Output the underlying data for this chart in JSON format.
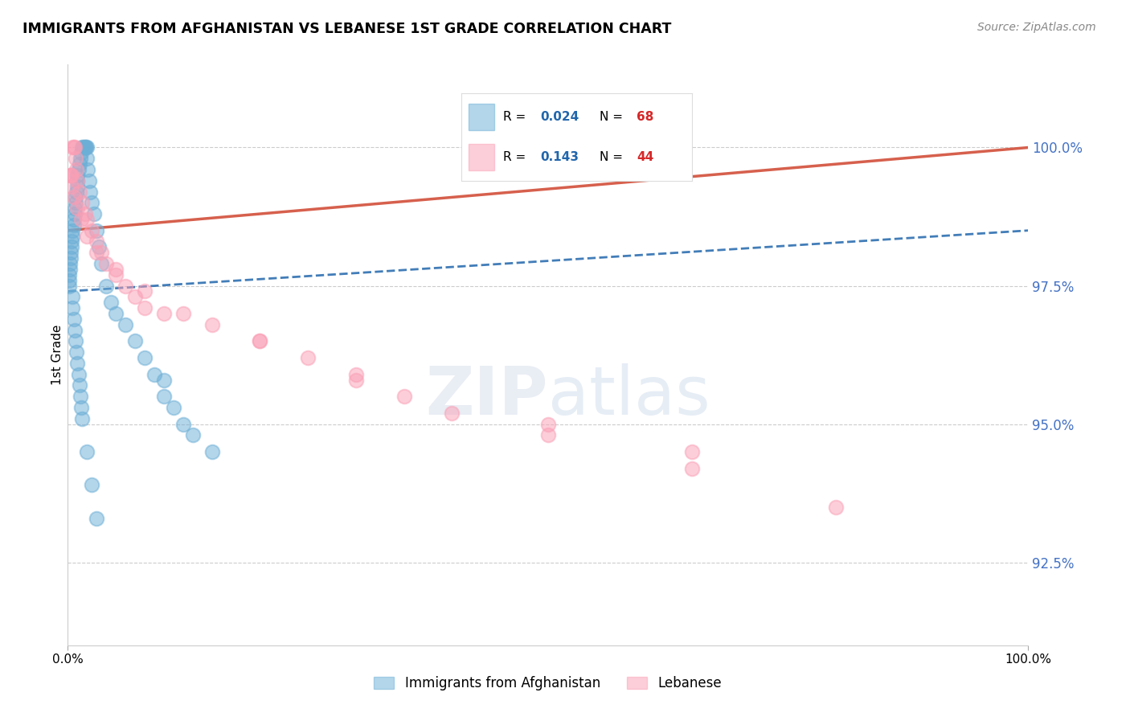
{
  "title": "IMMIGRANTS FROM AFGHANISTAN VS LEBANESE 1ST GRADE CORRELATION CHART",
  "source": "Source: ZipAtlas.com",
  "ylabel": "1st Grade",
  "y_ticks": [
    92.5,
    95.0,
    97.5,
    100.0
  ],
  "y_tick_labels": [
    "92.5%",
    "95.0%",
    "97.5%",
    "100.0%"
  ],
  "x_range": [
    0.0,
    100.0
  ],
  "y_range": [
    91.0,
    101.5
  ],
  "legend_blue_r": "0.024",
  "legend_blue_n": "68",
  "legend_pink_r": "0.143",
  "legend_pink_n": "44",
  "legend_label_blue": "Immigrants from Afghanistan",
  "legend_label_pink": "Lebanese",
  "blue_color": "#6baed6",
  "pink_color": "#fa9fb5",
  "trend_blue_color": "#2166ac",
  "trend_pink_color": "#d6604d",
  "blue_x": [
    0.1,
    0.1,
    0.1,
    0.2,
    0.2,
    0.3,
    0.3,
    0.4,
    0.4,
    0.5,
    0.5,
    0.6,
    0.6,
    0.7,
    0.7,
    0.8,
    0.8,
    0.9,
    1.0,
    1.0,
    1.0,
    1.1,
    1.2,
    1.3,
    1.4,
    1.5,
    1.6,
    1.7,
    1.8,
    1.9,
    2.0,
    2.0,
    2.1,
    2.2,
    2.3,
    2.5,
    2.7,
    3.0,
    3.2,
    3.5,
    4.0,
    4.5,
    5.0,
    6.0,
    7.0,
    8.0,
    9.0,
    10.0,
    10.0,
    11.0,
    12.0,
    13.0,
    15.0,
    0.5,
    0.5,
    0.6,
    0.7,
    0.8,
    0.9,
    1.0,
    1.1,
    1.2,
    1.3,
    1.4,
    1.5,
    2.0,
    2.5,
    3.0
  ],
  "blue_y": [
    97.5,
    97.6,
    97.7,
    97.8,
    97.9,
    98.0,
    98.1,
    98.2,
    98.3,
    98.4,
    98.5,
    98.6,
    98.7,
    98.8,
    98.9,
    99.0,
    99.1,
    99.2,
    99.3,
    99.4,
    99.5,
    99.6,
    99.7,
    99.8,
    99.9,
    100.0,
    100.0,
    100.0,
    100.0,
    100.0,
    100.0,
    99.8,
    99.6,
    99.4,
    99.2,
    99.0,
    98.8,
    98.5,
    98.2,
    97.9,
    97.5,
    97.2,
    97.0,
    96.8,
    96.5,
    96.2,
    95.9,
    95.5,
    95.8,
    95.3,
    95.0,
    94.8,
    94.5,
    97.3,
    97.1,
    96.9,
    96.7,
    96.5,
    96.3,
    96.1,
    95.9,
    95.7,
    95.5,
    95.3,
    95.1,
    94.5,
    93.9,
    93.3
  ],
  "pink_x": [
    0.2,
    0.3,
    0.4,
    0.5,
    0.6,
    0.7,
    0.8,
    0.9,
    1.0,
    1.2,
    1.5,
    1.8,
    2.0,
    2.5,
    3.0,
    3.5,
    4.0,
    5.0,
    6.0,
    7.0,
    8.0,
    10.0,
    15.0,
    20.0,
    25.0,
    30.0,
    35.0,
    40.0,
    50.0,
    65.0,
    0.4,
    0.6,
    1.0,
    1.4,
    2.0,
    3.0,
    5.0,
    8.0,
    12.0,
    20.0,
    30.0,
    50.0,
    65.0,
    80.0
  ],
  "pink_y": [
    99.5,
    99.5,
    99.5,
    100.0,
    100.0,
    100.0,
    99.8,
    99.6,
    99.4,
    99.2,
    99.0,
    98.8,
    98.7,
    98.5,
    98.3,
    98.1,
    97.9,
    97.7,
    97.5,
    97.3,
    97.1,
    97.0,
    96.8,
    96.5,
    96.2,
    95.9,
    95.5,
    95.2,
    94.8,
    94.5,
    99.3,
    99.1,
    98.9,
    98.7,
    98.4,
    98.1,
    97.8,
    97.4,
    97.0,
    96.5,
    95.8,
    95.0,
    94.2,
    93.5
  ],
  "blue_trend_x0": 0,
  "blue_trend_x1": 100,
  "blue_trend_y0": 97.4,
  "blue_trend_y1": 98.5,
  "pink_trend_x0": 0,
  "pink_trend_x1": 100,
  "pink_trend_y0": 98.5,
  "pink_trend_y1": 100.0
}
